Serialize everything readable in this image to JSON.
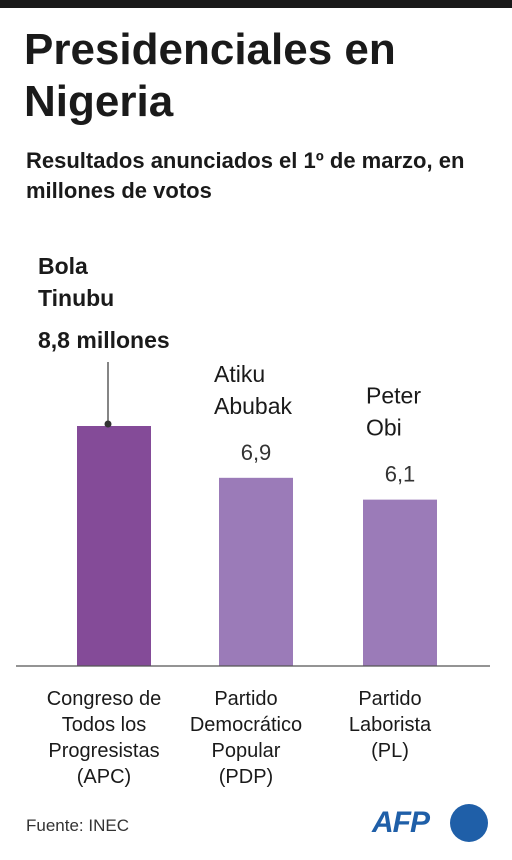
{
  "title": "Presidenciales en Nigeria",
  "subtitle": "Resultados anunciados el 1º de marzo, en millones de votos",
  "source": "Fuente: INEC",
  "logo": "AFP",
  "colors": {
    "winner": "#844b98",
    "other": "#9b7bb8",
    "axis": "#555555",
    "logo": "#1f5fa8"
  },
  "chart_data": {
    "type": "bar",
    "categories": [
      [
        "Congreso de",
        "Todos los",
        "Progresistas",
        "(APC)"
      ],
      [
        "Partido",
        "Democrático",
        "Popular",
        "(PDP)"
      ],
      [
        "Partido",
        "Laborista",
        "(PL)"
      ]
    ],
    "candidates": [
      [
        "Bola",
        "Tinubu"
      ],
      [
        "Atiku",
        "Abubak"
      ],
      [
        "Peter",
        "Obi"
      ]
    ],
    "value_labels": [
      "8,8 millones",
      "6,9",
      "6,1"
    ],
    "values": [
      8.8,
      6.9,
      6.1
    ],
    "ylim": [
      0,
      8.8
    ],
    "grid": false
  }
}
